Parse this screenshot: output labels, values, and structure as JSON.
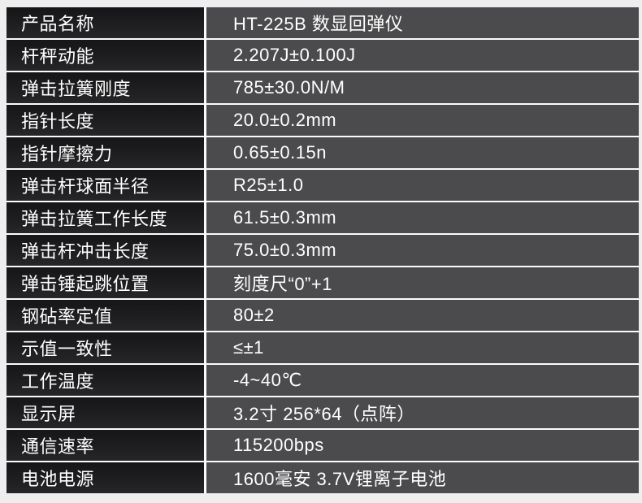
{
  "page": {
    "background_color": "#eeeeee",
    "divider_color": "#fbfbfb",
    "label_cell_color": "#1c1c1e",
    "value_cell_color": "#4b4b4d",
    "text_color": "#ffffff"
  },
  "table": {
    "rows": [
      {
        "label": "产品名称",
        "value": "HT-225B  数显回弹仪"
      },
      {
        "label": "杆秤动能",
        "value": "2.207J±0.100J"
      },
      {
        "label": "弹击拉簧刚度",
        "value": "785±30.0N/M"
      },
      {
        "label": "指针长度",
        "value": "20.0±0.2mm"
      },
      {
        "label": "指针摩擦力",
        "value": "0.65±0.15n"
      },
      {
        "label": "弹击杆球面半径",
        "value": "R25±1.0"
      },
      {
        "label": "弹击拉簧工作长度",
        "value": "61.5±0.3mm"
      },
      {
        "label": "弹击杆冲击长度",
        "value": "75.0±0.3mm"
      },
      {
        "label": "弹击锤起跳位置",
        "value": "刻度尺“0”+1"
      },
      {
        "label": "钢砧率定值",
        "value": "80±2"
      },
      {
        "label": "示值一致性",
        "value": "≤±1"
      },
      {
        "label": "工作温度",
        "value": "-4~40℃"
      },
      {
        "label": "显示屏",
        "value": "3.2寸  256*64（点阵）"
      },
      {
        "label": "通信速率",
        "value": "115200bps"
      },
      {
        "label": "电池电源",
        "value": "1600毫安 3.7V锂离子电池"
      }
    ]
  }
}
